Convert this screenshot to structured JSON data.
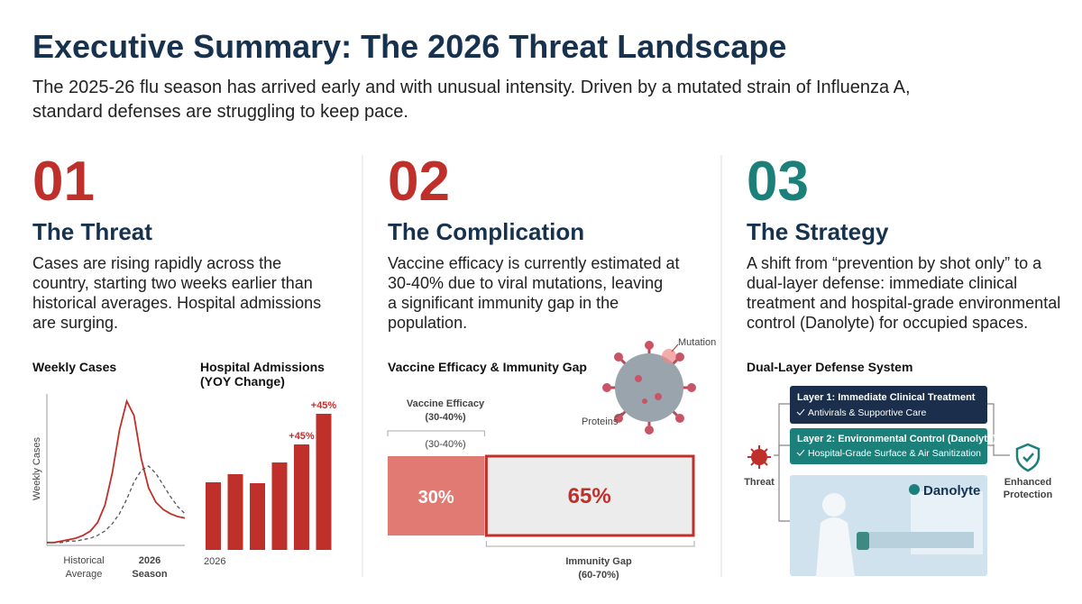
{
  "header": {
    "title": "Executive Summary: The 2026 Threat Landscape",
    "subtitle": [
      "The 2025-26 flu season has arrived early and with unusual intensity. Driven by a mutated strain of Influenza A,",
      "standard defenses are struggling to keep pace."
    ]
  },
  "columns": [
    {
      "number": "01",
      "heading": "The Threat",
      "color": "#c0302b",
      "body": [
        "Cases are rising rapidly across the",
        "country, starting two weeks earlier than",
        "historical averages. Hospital admissions",
        "are surging."
      ]
    },
    {
      "number": "02",
      "heading": "The Complication",
      "color": "#c0302b",
      "body": [
        "Vaccine efficacy is currently estimated at",
        "30-40% due to viral mutations, leaving",
        "a significant immunity gap in the",
        "population."
      ]
    },
    {
      "number": "03",
      "heading": "The Strategy",
      "color": "#1b7f7a",
      "body": [
        "A shift from “prevention by shot only” to a",
        "dual-layer defense: immediate clinical",
        "treatment and hospital-grade environmental",
        "control (Danolyte) for occupied spaces."
      ]
    }
  ],
  "weekly_cases": {
    "type": "line",
    "title": "Weekly Cases",
    "y_label": "Weekly Cases",
    "x_labels": [
      [
        "Historical",
        "Average"
      ],
      [
        "2026",
        "Season"
      ]
    ],
    "ylim": [
      0,
      105
    ],
    "series": [
      {
        "color": "#c0302b",
        "dashed": false,
        "values": [
          2,
          2,
          3,
          4,
          5,
          7,
          10,
          16,
          28,
          50,
          80,
          100,
          90,
          60,
          40,
          30,
          25,
          22,
          20,
          19
        ]
      },
      {
        "color": "#555555",
        "dashed": true,
        "values": [
          2,
          2,
          2,
          3,
          3,
          4,
          5,
          7,
          10,
          15,
          22,
          32,
          44,
          52,
          55,
          50,
          42,
          34,
          27,
          22
        ]
      }
    ]
  },
  "hospital_admissions": {
    "type": "bar",
    "title": [
      "Hospital Admissions",
      "(YOY Change)"
    ],
    "x_label": "2026",
    "color": "#c0302b",
    "ylim": [
      0,
      160
    ],
    "values": [
      75,
      84,
      74,
      97,
      117,
      151
    ],
    "annotations": [
      "+45%",
      "+45%"
    ]
  },
  "immunity_gap": {
    "type": "stacked-bar",
    "title": "Vaccine Efficacy & Immunity Gap",
    "efficacy_label": [
      "Vaccine Efficacy",
      "(30-40%)"
    ],
    "range_note": "(30-40%)",
    "gap_label": [
      "Immunity Gap",
      "(60-70%)"
    ],
    "illustration_labels": [
      "Mutation",
      "Proteins"
    ],
    "values": [
      30,
      65
    ],
    "value_labels": [
      "30%",
      "65%"
    ],
    "colors": [
      "#e07a72",
      "#ececec"
    ]
  },
  "defense_system": {
    "title": "Dual-Layer Defense System",
    "threat": "Threat",
    "layers": [
      {
        "title": "Layer 1: Immediate Clinical Treatment",
        "item": "Antivirals & Supportive Care"
      },
      {
        "title": "Layer 2: Environmental Control (Danolyte)",
        "item": "Hospital-Grade Surface & Air Sanitization"
      }
    ],
    "brand": "Danolyte",
    "outcome": [
      "Enhanced",
      "Protection"
    ]
  }
}
